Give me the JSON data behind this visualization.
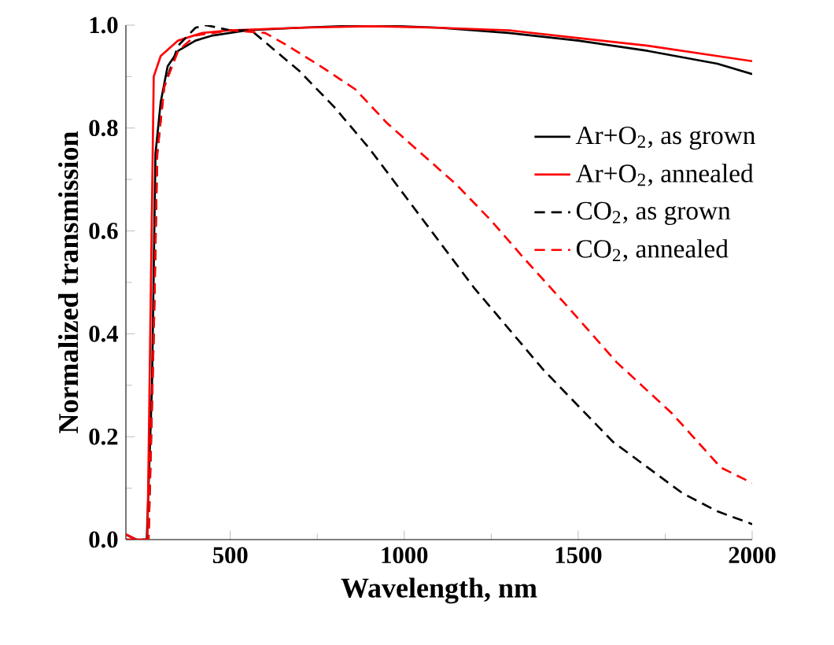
{
  "chart_data": {
    "type": "line",
    "xlabel": "Wavelength, nm",
    "ylabel": "Normalized transmission",
    "xlim": [
      200,
      2000
    ],
    "ylim": [
      0,
      1.0
    ],
    "xticks": [
      500,
      1000,
      1500,
      2000
    ],
    "yticks": [
      {
        "value": 0,
        "label": "0.0"
      },
      {
        "value": 0.2,
        "label": "0.2"
      },
      {
        "value": 0.4,
        "label": "0.4"
      },
      {
        "value": 0.6,
        "label": "0.6"
      },
      {
        "value": 0.8,
        "label": "0.8"
      },
      {
        "value": 1.0,
        "label": "1.0"
      }
    ],
    "legend": "right",
    "marker": "none",
    "series": [
      {
        "name": "Ar+O$_{2}$, as grown",
        "color": "#000000",
        "line_style": "solid",
        "x": [
          200,
          230,
          260,
          275,
          285,
          300,
          320,
          350,
          400,
          450,
          550,
          700,
          900,
          1100,
          1300,
          1500,
          1700,
          1900,
          2000
        ],
        "values": [
          0.01,
          0.0,
          0.0,
          0.3,
          0.75,
          0.85,
          0.92,
          0.95,
          0.97,
          0.98,
          0.99,
          0.995,
          1.0,
          0.995,
          0.985,
          0.97,
          0.95,
          0.925,
          0.905
        ]
      },
      {
        "name": "Ar+O$_{2}$, annealed",
        "color": "#ff0000",
        "line_style": "solid",
        "x": [
          200,
          230,
          262,
          272,
          280,
          300,
          350,
          420,
          500,
          700,
          900,
          1100,
          1300,
          1500,
          1700,
          1900,
          2000
        ],
        "values": [
          0.01,
          0.0,
          0.0,
          0.5,
          0.9,
          0.94,
          0.97,
          0.985,
          0.99,
          0.995,
          0.998,
          0.995,
          0.99,
          0.975,
          0.96,
          0.94,
          0.93
        ]
      },
      {
        "name": "CO$_{2}$, as grown",
        "color": "#000000",
        "line_style": "dashed",
        "x": [
          200,
          265,
          280,
          290,
          310,
          350,
          400,
          430,
          500,
          560,
          700,
          800,
          900,
          1000,
          1100,
          1200,
          1300,
          1400,
          1500,
          1600,
          1700,
          1800,
          1900,
          2000
        ],
        "values": [
          0.0,
          0.0,
          0.4,
          0.75,
          0.88,
          0.96,
          0.995,
          1.0,
          0.99,
          0.99,
          0.91,
          0.84,
          0.76,
          0.67,
          0.58,
          0.49,
          0.41,
          0.33,
          0.26,
          0.19,
          0.14,
          0.09,
          0.055,
          0.03
        ]
      },
      {
        "name": "CO$_{2}$, annealed",
        "color": "#ff0000",
        "line_style": "dashed",
        "x": [
          200,
          265,
          280,
          290,
          310,
          350,
          400,
          500,
          600,
          665,
          760,
          860,
          950,
          1050,
          1150,
          1250,
          1340,
          1460,
          1610,
          1770,
          1910,
          2000
        ],
        "values": [
          0.0,
          0.0,
          0.4,
          0.75,
          0.88,
          0.95,
          0.98,
          0.99,
          0.985,
          0.96,
          0.92,
          0.875,
          0.81,
          0.75,
          0.69,
          0.62,
          0.55,
          0.46,
          0.345,
          0.245,
          0.14,
          0.11
        ]
      }
    ]
  }
}
